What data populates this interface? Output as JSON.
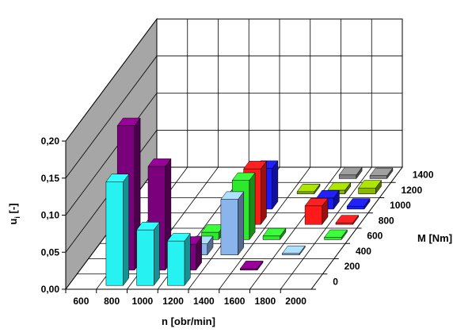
{
  "chart_data": {
    "type": "bar3d",
    "title": "",
    "xlabel": "n [obr/min]",
    "ylabel_main": "u",
    "ylabel_sub": "i",
    "ylabel_rest": " [-]",
    "zlabel": "M [Nm]",
    "x_categories": [
      "600",
      "800",
      "1000",
      "1200",
      "1400",
      "1600",
      "1800",
      "2000"
    ],
    "z_categories": [
      "0",
      "200",
      "400",
      "600",
      "800",
      "1000",
      "1200",
      "1400"
    ],
    "y_ticks": [
      "0,00",
      "0,05",
      "0,10",
      "0,15",
      "0,20"
    ],
    "ylim": [
      0,
      0.2
    ],
    "grid": true,
    "row_colors": [
      "#7b007b",
      "#8ab4ec",
      "#2ee82e",
      "#ff1a1a",
      "#1a1aff",
      "#8ab800",
      "#8ab800",
      "#808080"
    ],
    "bars": [
      {
        "x": "800",
        "z": "0",
        "value": 0.14,
        "color": "#27f2f2"
      },
      {
        "x": "1000",
        "z": "0",
        "value": 0.075,
        "color": "#27f2f2"
      },
      {
        "x": "1200",
        "z": "0",
        "value": 0.06,
        "color": "#27f2f2"
      },
      {
        "x": "800",
        "z": "200",
        "value": 0.195,
        "color": "#7b007b"
      },
      {
        "x": "1000",
        "z": "200",
        "value": 0.14,
        "color": "#7b007b"
      },
      {
        "x": "1200",
        "z": "200",
        "value": 0.035,
        "color": "#7b007b"
      },
      {
        "x": "1200",
        "z": "400",
        "value": 0.015,
        "color": "#8ab4ec"
      },
      {
        "x": "1400",
        "z": "400",
        "value": 0.075,
        "color": "#8ab4ec"
      },
      {
        "x": "1200",
        "z": "600",
        "value": 0.01,
        "color": "#2ee82e"
      },
      {
        "x": "1400",
        "z": "600",
        "value": 0.08,
        "color": "#2ee82e"
      },
      {
        "x": "1600",
        "z": "600",
        "value": 0.005,
        "color": "#2ee82e"
      },
      {
        "x": "1400",
        "z": "800",
        "value": 0.075,
        "color": "#ff1a1a"
      },
      {
        "x": "1800",
        "z": "800",
        "value": 0.025,
        "color": "#ff1a1a"
      },
      {
        "x": "1400",
        "z": "1000",
        "value": 0.055,
        "color": "#1a1aff"
      },
      {
        "x": "1800",
        "z": "1000",
        "value": 0.015,
        "color": "#1a1aff"
      },
      {
        "x": "1600",
        "z": "1200",
        "value": 0.003,
        "color": "#8ab800"
      },
      {
        "x": "1800",
        "z": "1200",
        "value": 0.005,
        "color": "#8ab800"
      },
      {
        "x": "2000",
        "z": "1200",
        "value": 0.008,
        "color": "#8ab800"
      },
      {
        "x": "1800",
        "z": "1400",
        "value": 0.005,
        "color": "#808080"
      },
      {
        "x": "2000",
        "z": "1400",
        "value": 0.004,
        "color": "#808080"
      },
      {
        "x": "1600",
        "z": "200",
        "value": 0.002,
        "color": "#7b007b"
      },
      {
        "x": "1800",
        "z": "400",
        "value": 0.002,
        "color": "#8ab4ec"
      },
      {
        "x": "2000",
        "z": "600",
        "value": 0.003,
        "color": "#2ee82e"
      },
      {
        "x": "2000",
        "z": "800",
        "value": 0.002,
        "color": "#ff1a1a"
      },
      {
        "x": "2000",
        "z": "1000",
        "value": 0.004,
        "color": "#1a1aff"
      }
    ]
  }
}
